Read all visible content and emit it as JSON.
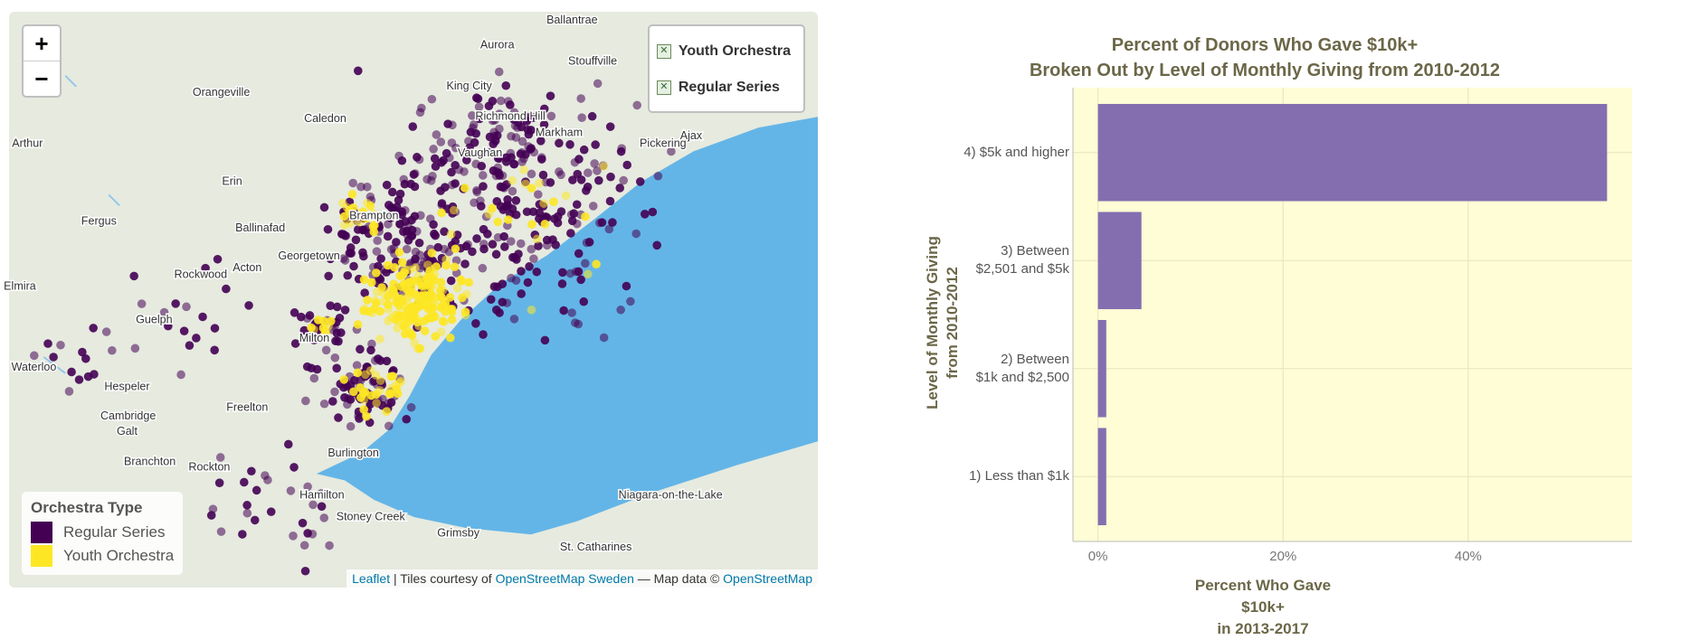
{
  "map": {
    "zoom_in": "+",
    "zoom_out": "−",
    "layers": [
      "Youth Orchestra",
      "Regular Series"
    ],
    "legend": {
      "title": "Orchestra Type",
      "items": [
        {
          "label": "Regular Series",
          "color": "#440154"
        },
        {
          "label": "Youth Orchestra",
          "color": "#fde725"
        }
      ]
    },
    "places": [
      "Ballantrae",
      "Aurora",
      "Stouffville",
      "Orangeville",
      "King City",
      "Caledon",
      "Richmond Hill",
      "Markham",
      "Ajax",
      "Pickering",
      "Vaughan",
      "Arthur",
      "Erin",
      "Fergus",
      "Ballinafad",
      "Brampton",
      "Georgetown",
      "Rockwood",
      "Acton",
      "Elmira",
      "Guelph",
      "Waterloo",
      "Milton",
      "Hespeler",
      "Cambridge",
      "Galt",
      "Freelton",
      "Branchton",
      "Rockton",
      "Burlington",
      "Hamilton",
      "Stoney Creek",
      "Grimsby",
      "St. Catharines",
      "Niagara-on-the-Lake"
    ],
    "attribution": [
      "Leaflet",
      " | Tiles courtesy of ",
      "OpenStreetMap Sweden",
      " — Map data © ",
      "OpenStreetMap"
    ]
  },
  "chart_data": {
    "type": "bar",
    "orientation": "horizontal",
    "title": "Percent of Donors Who Gave $10k+\nBroken Out by Level of Monthly Giving from 2010-2012",
    "categories": [
      "1) Less than $1k",
      "2) Between\n$1k and $2,500",
      "3) Between\n$2,501 and $5k",
      "4) $5k and higher"
    ],
    "values": [
      0.9,
      0.9,
      4.7,
      55.0
    ],
    "color": "#846eb0",
    "background": "#fefdd6",
    "xlim": [
      -2.7,
      57.7
    ],
    "xticks": [
      {
        "value": 0,
        "label": "0%"
      },
      {
        "value": 20,
        "label": "20%"
      },
      {
        "value": 40,
        "label": "40%"
      }
    ],
    "x_label": "Percent Who Gave $10k+\nin 2013-2017",
    "y_label": "Level of Monthly Giving\nfrom 2010-2012",
    "grid": true
  }
}
